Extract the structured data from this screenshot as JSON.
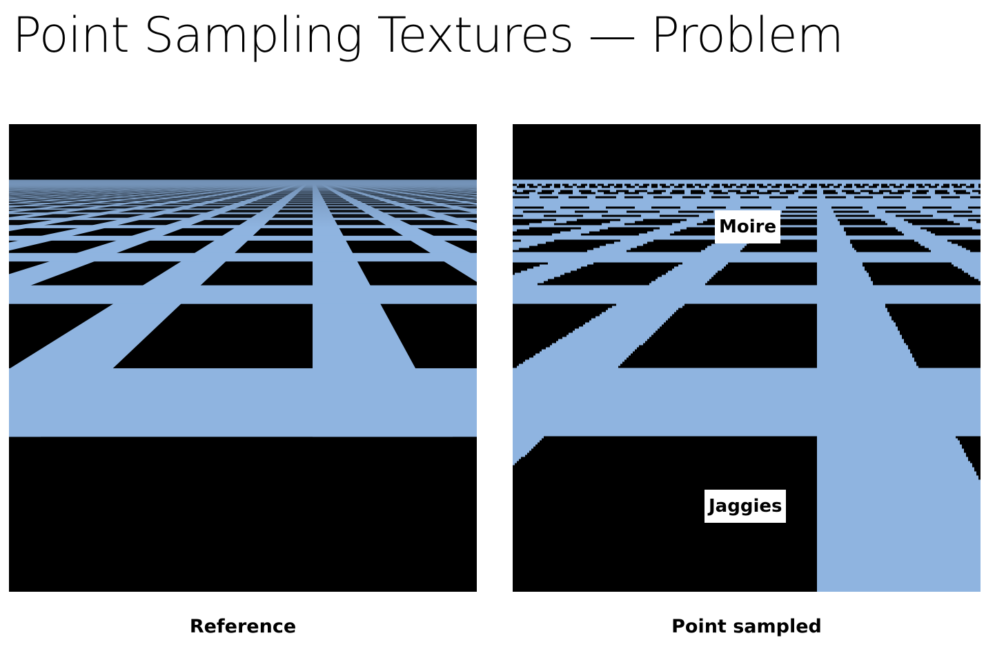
{
  "slide": {
    "title": "Point Sampling Textures — Problem"
  },
  "panels": {
    "reference": {
      "caption": "Reference"
    },
    "point_sampled": {
      "caption": "Point sampled",
      "callouts": {
        "moire": "Moire",
        "jaggies": "Jaggies"
      }
    }
  },
  "colors": {
    "grid_line": "#8fb4e0",
    "sky": "#000000",
    "ground": "#000000"
  }
}
